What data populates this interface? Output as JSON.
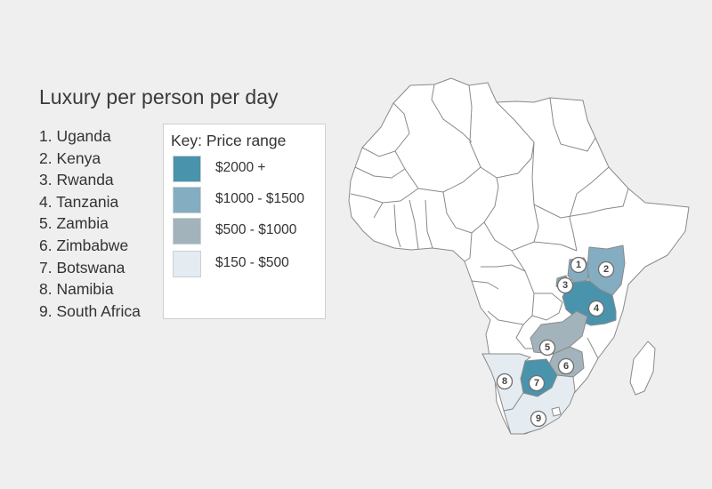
{
  "title": "Luxury per person per day",
  "countries": [
    "1. Uganda",
    "2. Kenya",
    "3. Rwanda",
    "4. Tanzania",
    "5. Zambia",
    "6. Zimbabwe",
    "7. Botswana",
    "8. Namibia",
    "9. South Africa"
  ],
  "key": {
    "title": "Key: Price range",
    "items": [
      {
        "label": "$2000 +",
        "color": "#4a93ac"
      },
      {
        "label": "$1000 - $1500",
        "color": "#84adc1"
      },
      {
        "label": "$500 - $1000",
        "color": "#a3b3bb"
      },
      {
        "label": "$150 - $500",
        "color": "#e4ecf1"
      }
    ]
  },
  "map": {
    "land_color": "#ffffff",
    "background_color": "#efefef",
    "markers": [
      "1",
      "2",
      "3",
      "4",
      "5",
      "6",
      "7",
      "8",
      "9"
    ],
    "region_price_level": {
      "uganda": "$1000 - $1500",
      "kenya": "$1000 - $1500",
      "rwanda": "$1000 - $1500",
      "tanzania": "$2000 +",
      "zambia": "$500 - $1000",
      "zimbabwe": "$500 - $1000",
      "botswana": "$2000 +",
      "namibia": "$150 - $500",
      "south_africa": "$150 - $500"
    }
  }
}
